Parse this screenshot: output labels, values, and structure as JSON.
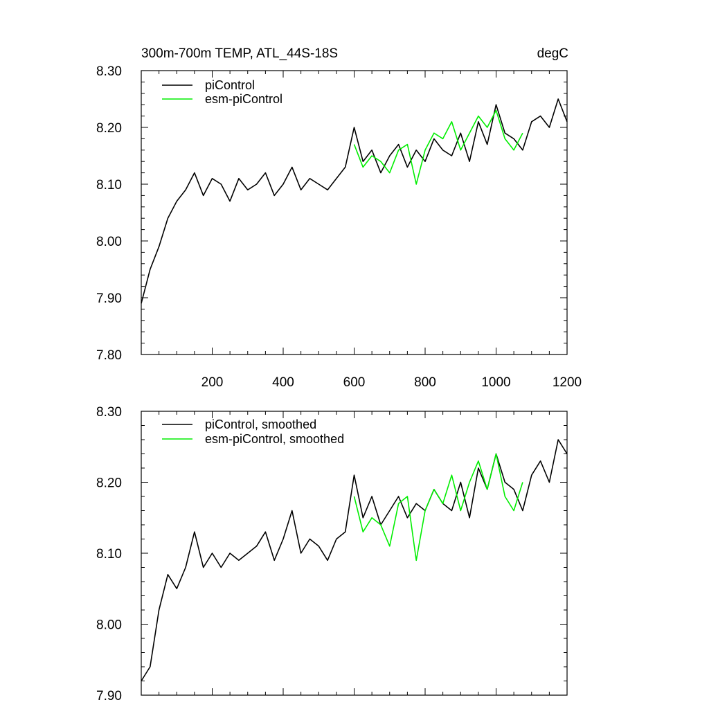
{
  "chart_data": [
    {
      "type": "line",
      "title": "300m-700m TEMP, ATL_44S-18S",
      "units": "degC",
      "xlabel": "",
      "ylabel": "",
      "xlim": [
        0,
        1200
      ],
      "ylim": [
        7.8,
        8.3
      ],
      "x_ticks": [
        200,
        400,
        600,
        800,
        1000,
        1200
      ],
      "x_tick_labels": [
        "200",
        "400",
        "600",
        "800",
        "1000",
        "1200"
      ],
      "y_ticks": [
        7.8,
        7.9,
        8.0,
        8.1,
        8.2,
        8.3
      ],
      "y_tick_labels": [
        "7.80",
        "7.90",
        "8.00",
        "8.10",
        "8.20",
        "8.30"
      ],
      "legend_position": "top-left",
      "series": [
        {
          "name": "piControl",
          "color": "#000000",
          "x": [
            0,
            25,
            50,
            75,
            100,
            125,
            150,
            175,
            200,
            225,
            250,
            275,
            300,
            325,
            350,
            375,
            400,
            425,
            450,
            475,
            500,
            525,
            550,
            575,
            600,
            625,
            650,
            675,
            700,
            725,
            750,
            775,
            800,
            825,
            850,
            875,
            900,
            925,
            950,
            975,
            1000,
            1025,
            1050,
            1075,
            1100,
            1125,
            1150,
            1175,
            1200
          ],
          "values": [
            7.89,
            7.95,
            7.99,
            8.04,
            8.07,
            8.09,
            8.12,
            8.08,
            8.11,
            8.1,
            8.07,
            8.11,
            8.09,
            8.1,
            8.12,
            8.08,
            8.1,
            8.13,
            8.09,
            8.11,
            8.1,
            8.09,
            8.11,
            8.13,
            8.2,
            8.14,
            8.16,
            8.12,
            8.15,
            8.17,
            8.13,
            8.16,
            8.14,
            8.18,
            8.16,
            8.15,
            8.19,
            8.14,
            8.21,
            8.17,
            8.24,
            8.19,
            8.18,
            8.16,
            8.21,
            8.22,
            8.2,
            8.25,
            8.21
          ]
        },
        {
          "name": "esm-piControl",
          "color": "#00ee00",
          "x": [
            600,
            625,
            650,
            675,
            700,
            725,
            750,
            775,
            800,
            825,
            850,
            875,
            900,
            925,
            950,
            975,
            1000,
            1025,
            1050,
            1075
          ],
          "values": [
            8.17,
            8.13,
            8.15,
            8.14,
            8.12,
            8.16,
            8.17,
            8.1,
            8.16,
            8.19,
            8.18,
            8.21,
            8.16,
            8.19,
            8.22,
            8.2,
            8.23,
            8.18,
            8.16,
            8.19
          ]
        }
      ]
    },
    {
      "type": "line",
      "title": "",
      "xlabel": "",
      "ylabel": "",
      "xlim": [
        0,
        1200
      ],
      "ylim": [
        7.9,
        8.3
      ],
      "y_ticks": [
        7.9,
        8.0,
        8.1,
        8.2,
        8.3
      ],
      "y_tick_labels": [
        "7.90",
        "8.00",
        "8.10",
        "8.20",
        "8.30"
      ],
      "legend_position": "top-left",
      "series": [
        {
          "name": "piControl, smoothed",
          "color": "#000000",
          "x": [
            0,
            25,
            50,
            75,
            100,
            125,
            150,
            175,
            200,
            225,
            250,
            275,
            300,
            325,
            350,
            375,
            400,
            425,
            450,
            475,
            500,
            525,
            550,
            575,
            600,
            625,
            650,
            675,
            700,
            725,
            750,
            775,
            800,
            825,
            850,
            875,
            900,
            925,
            950,
            975,
            1000,
            1025,
            1050,
            1075,
            1100,
            1125,
            1150,
            1175,
            1200
          ],
          "values": [
            7.92,
            7.94,
            8.02,
            8.07,
            8.05,
            8.08,
            8.13,
            8.08,
            8.1,
            8.08,
            8.1,
            8.09,
            8.1,
            8.11,
            8.13,
            8.09,
            8.12,
            8.16,
            8.1,
            8.12,
            8.11,
            8.09,
            8.12,
            8.13,
            8.21,
            8.15,
            8.18,
            8.14,
            8.16,
            8.18,
            8.15,
            8.17,
            8.16,
            8.19,
            8.17,
            8.16,
            8.2,
            8.15,
            8.22,
            8.19,
            8.24,
            8.2,
            8.19,
            8.16,
            8.21,
            8.23,
            8.2,
            8.26,
            8.24
          ]
        },
        {
          "name": "esm-piControl, smoothed",
          "color": "#00ee00",
          "x": [
            600,
            625,
            650,
            675,
            700,
            725,
            750,
            775,
            800,
            825,
            850,
            875,
            900,
            925,
            950,
            975,
            1000,
            1025,
            1050,
            1075
          ],
          "values": [
            8.18,
            8.13,
            8.15,
            8.14,
            8.11,
            8.17,
            8.18,
            8.09,
            8.16,
            8.19,
            8.17,
            8.21,
            8.16,
            8.2,
            8.23,
            8.19,
            8.24,
            8.18,
            8.16,
            8.2
          ]
        }
      ]
    }
  ]
}
